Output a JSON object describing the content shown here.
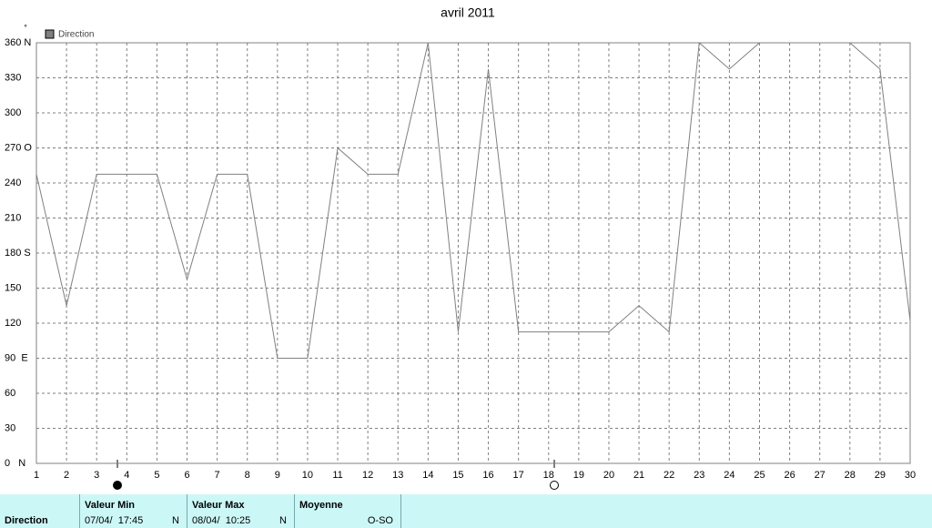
{
  "chart_data": {
    "type": "line",
    "title": "avril 2011",
    "y_label": "°",
    "x": [
      1,
      2,
      3,
      4,
      5,
      6,
      7,
      8,
      9,
      10,
      11,
      12,
      13,
      14,
      15,
      16,
      17,
      18,
      19,
      20,
      21,
      22,
      23,
      24,
      25,
      26,
      27,
      28,
      29,
      30
    ],
    "series": [
      {
        "name": "Direction",
        "color": "#808080",
        "values": [
          247.5,
          135,
          247.5,
          247.5,
          247.5,
          157.5,
          247.5,
          247.5,
          90,
          90,
          270,
          247.5,
          247.5,
          360,
          112.5,
          337.5,
          112.5,
          112.5,
          112.5,
          112.5,
          135,
          112.5,
          360,
          337.5,
          360,
          360,
          360,
          360,
          337.5,
          122
        ]
      }
    ],
    "xlim": [
      1,
      30
    ],
    "xticks": [
      1,
      2,
      3,
      4,
      5,
      6,
      7,
      8,
      9,
      10,
      11,
      12,
      13,
      14,
      15,
      16,
      17,
      18,
      19,
      20,
      21,
      22,
      23,
      24,
      25,
      26,
      27,
      28,
      29,
      30
    ],
    "ylim": [
      0,
      360
    ],
    "yticks": [
      {
        "value": 0,
        "label": "0   N"
      },
      30,
      60,
      {
        "value": 90,
        "label": "90  E"
      },
      120,
      150,
      {
        "value": 180,
        "label": "180 S"
      },
      210,
      240,
      {
        "value": 270,
        "label": "270 O"
      },
      300,
      330,
      {
        "value": 360,
        "label": "360 N"
      }
    ],
    "grid": true,
    "legend": "top-left"
  },
  "summary": {
    "row_label": "Direction",
    "columns": [
      {
        "header": "Valeur Min",
        "date": "07/04/  17:45",
        "direction": "N"
      },
      {
        "header": "Valeur Max",
        "date": "08/04/  10:25",
        "direction": "N"
      },
      {
        "header": "Moyenne",
        "direction": "O-SO"
      }
    ]
  }
}
